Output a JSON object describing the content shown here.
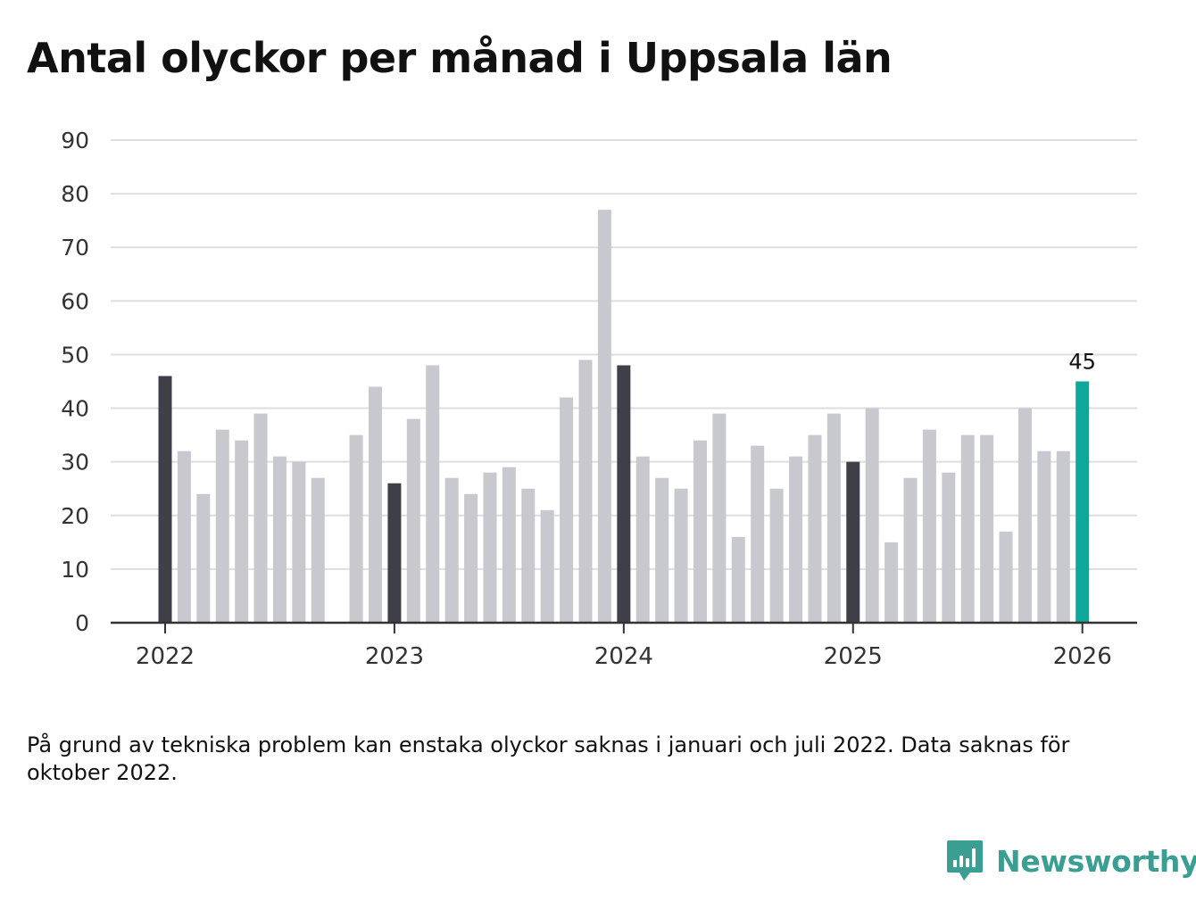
{
  "title": "Antal olyckor per månad i Uppsala län",
  "footnote": "På grund av tekniska problem kan enstaka olyckor saknas i januari och juli 2022. Data saknas för oktober 2022.",
  "brand": {
    "name": "Newsworthy",
    "icon": "newsworthy-logo-icon",
    "color": "#3a9e93"
  },
  "colors": {
    "bar_default": "#c8c8cf",
    "bar_january": "#3f3f4a",
    "bar_latest": "#0ea89b",
    "grid": "#dedede",
    "axis": "#333333"
  },
  "chart_data": {
    "type": "bar",
    "title": "Antal olyckor per månad i Uppsala län",
    "xlabel": "",
    "ylabel": "",
    "ylim": [
      0,
      90
    ],
    "y_ticks": [
      0,
      10,
      20,
      30,
      40,
      50,
      60,
      70,
      80,
      90
    ],
    "x_tick_labels": [
      "2022",
      "2023",
      "2024",
      "2025",
      "2026"
    ],
    "grid": true,
    "categories": [
      "2022-01",
      "2022-02",
      "2022-03",
      "2022-04",
      "2022-05",
      "2022-06",
      "2022-07",
      "2022-08",
      "2022-09",
      "2022-10",
      "2022-11",
      "2022-12",
      "2023-01",
      "2023-02",
      "2023-03",
      "2023-04",
      "2023-05",
      "2023-06",
      "2023-07",
      "2023-08",
      "2023-09",
      "2023-10",
      "2023-11",
      "2023-12",
      "2024-01",
      "2024-02",
      "2024-03",
      "2024-04",
      "2024-05",
      "2024-06",
      "2024-07",
      "2024-08",
      "2024-09",
      "2024-10",
      "2024-11",
      "2024-12",
      "2025-01",
      "2025-02",
      "2025-03",
      "2025-04",
      "2025-05",
      "2025-06",
      "2025-07",
      "2025-08",
      "2025-09",
      "2025-10",
      "2025-11",
      "2025-12",
      "2026-01"
    ],
    "values": [
      46,
      32,
      24,
      36,
      34,
      39,
      31,
      30,
      27,
      null,
      35,
      44,
      26,
      38,
      48,
      27,
      24,
      28,
      29,
      25,
      21,
      42,
      49,
      77,
      48,
      31,
      27,
      25,
      34,
      39,
      16,
      33,
      25,
      31,
      35,
      39,
      30,
      40,
      15,
      27,
      36,
      28,
      35,
      35,
      17,
      40,
      32,
      32,
      45
    ],
    "highlight_last_label": "45"
  }
}
